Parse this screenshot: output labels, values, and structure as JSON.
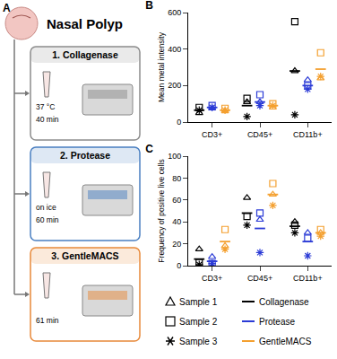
{
  "diagram": {
    "panel": "A",
    "title": "Nasal Polyp",
    "steps": [
      {
        "label": "1. Collagenase",
        "condition": "37 °C",
        "time": "40 min",
        "color": "#8c8c8c"
      },
      {
        "label": "2. Protease",
        "condition": "on ice",
        "time": "60 min",
        "color": "#4a7fc1"
      },
      {
        "label": "3. GentleMACS",
        "time": "61 min",
        "color": "#e8893a"
      }
    ]
  },
  "chart_data": [
    {
      "type": "scatter",
      "title": "B",
      "y_label": "Mean metal intensity",
      "categories": [
        "CD3+",
        "CD45+",
        "CD11b+"
      ],
      "ylim": [
        0,
        600
      ],
      "yticks": [
        0,
        200,
        400,
        600
      ],
      "legend": "bottom",
      "series": [
        {
          "name": "Collagenase",
          "color": "#000000",
          "means": [
            65,
            90,
            280
          ],
          "samples": [
            {
              "name": "Sample 1",
              "marker": "triangle",
              "values": [
                50,
                110,
                280
              ]
            },
            {
              "name": "Sample 2",
              "marker": "square",
              "values": [
                80,
                130,
                550
              ]
            },
            {
              "name": "Sample 3",
              "marker": "asterisk",
              "values": [
                65,
                30,
                40
              ]
            }
          ]
        },
        {
          "name": "Protease",
          "color": "#2b3bd6",
          "means": [
            80,
            110,
            200
          ],
          "samples": [
            {
              "name": "Sample 1",
              "marker": "triangle",
              "values": [
                75,
                110,
                230
              ]
            },
            {
              "name": "Sample 2",
              "marker": "square",
              "values": [
                90,
                150,
                200
              ]
            },
            {
              "name": "Sample 3",
              "marker": "asterisk",
              "values": [
                80,
                90,
                180
              ]
            }
          ]
        },
        {
          "name": "GentleMACS",
          "color": "#f4a030",
          "means": [
            65,
            90,
            290
          ],
          "samples": [
            {
              "name": "Sample 1",
              "marker": "triangle",
              "values": [
                60,
                80,
                240
              ]
            },
            {
              "name": "Sample 2",
              "marker": "square",
              "values": [
                75,
                100,
                380
              ]
            },
            {
              "name": "Sample 3",
              "marker": "asterisk",
              "values": [
                65,
                90,
                250
              ]
            }
          ]
        }
      ]
    },
    {
      "type": "scatter",
      "title": "C",
      "y_label": "Frequency of positive live cells",
      "categories": [
        "CD3+",
        "CD45+",
        "CD11b+"
      ],
      "ylim": [
        0,
        100
      ],
      "yticks": [
        0,
        20,
        40,
        60,
        80,
        100
      ],
      "series": [
        {
          "name": "Collagenase",
          "color": "#000000",
          "means": [
            6,
            48,
            36
          ],
          "samples": [
            {
              "name": "Sample 1",
              "marker": "triangle",
              "values": [
                15,
                62,
                40
              ]
            },
            {
              "name": "Sample 2",
              "marker": "square",
              "values": [
                3,
                45,
                37
              ]
            },
            {
              "name": "Sample 3",
              "marker": "asterisk",
              "values": [
                1,
                37,
                30
              ]
            }
          ]
        },
        {
          "name": "Protease",
          "color": "#2b3bd6",
          "means": [
            4,
            34,
            22
          ],
          "samples": [
            {
              "name": "Sample 1",
              "marker": "triangle",
              "values": [
                8,
                42,
                30
              ]
            },
            {
              "name": "Sample 2",
              "marker": "square",
              "values": [
                2,
                48,
                25
              ]
            },
            {
              "name": "Sample 3",
              "marker": "asterisk",
              "values": [
                2,
                12,
                9
              ]
            }
          ]
        },
        {
          "name": "GentleMACS",
          "color": "#f4a030",
          "means": [
            22,
            65,
            30
          ],
          "samples": [
            {
              "name": "Sample 1",
              "marker": "triangle",
              "values": [
                18,
                65,
                30
              ]
            },
            {
              "name": "Sample 2",
              "marker": "square",
              "values": [
                33,
                75,
                33
              ]
            },
            {
              "name": "Sample 3",
              "marker": "asterisk",
              "values": [
                15,
                55,
                27
              ]
            }
          ]
        }
      ]
    }
  ]
}
